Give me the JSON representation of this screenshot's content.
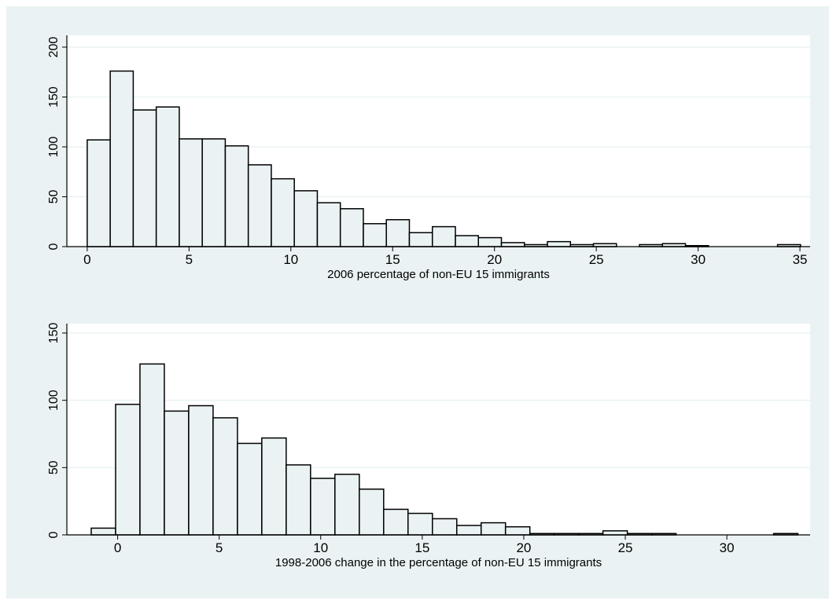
{
  "chart_data": [
    {
      "type": "histogram",
      "xlabel": "2006 percentage of non-EU 15 immigrants",
      "bins": [
        0,
        1.13,
        2.26,
        3.39,
        4.52,
        5.65,
        6.78,
        7.91,
        9.04,
        10.17,
        11.3,
        12.43,
        13.56,
        14.69,
        15.82,
        16.95,
        18.08,
        19.21,
        20.34,
        21.47,
        22.6,
        23.73,
        24.86,
        25.99,
        27.12,
        28.25,
        29.38,
        30.51,
        31.64,
        32.77,
        33.9,
        35.03
      ],
      "values": [
        107,
        176,
        137,
        140,
        108,
        108,
        101,
        82,
        68,
        56,
        44,
        38,
        23,
        27,
        14,
        20,
        11,
        9,
        4,
        2,
        5,
        2,
        3,
        0,
        2,
        3,
        1,
        0,
        0,
        0,
        2
      ],
      "color": "#eaf2f3",
      "xlim": [
        -1,
        35.5
      ],
      "xticks": [
        0,
        5,
        10,
        15,
        20,
        25,
        30,
        35
      ],
      "ylim": [
        0,
        200
      ],
      "yticks": [
        0,
        50,
        100,
        150,
        200
      ],
      "grid": true
    },
    {
      "type": "histogram",
      "xlabel": "1998-2006 change in the percentage of non-EU 15 immigrants",
      "bins": [
        -1.3,
        -0.1,
        1.1,
        2.3,
        3.5,
        4.7,
        5.9,
        7.1,
        8.3,
        9.5,
        10.7,
        11.9,
        13.1,
        14.3,
        15.5,
        16.7,
        17.9,
        19.1,
        20.3,
        21.5,
        22.7,
        23.9,
        25.1,
        26.3,
        27.5,
        28.7,
        29.9,
        31.1,
        32.3,
        33.5
      ],
      "values": [
        5,
        97,
        127,
        92,
        96,
        87,
        68,
        72,
        52,
        42,
        45,
        34,
        19,
        16,
        12,
        7,
        9,
        6,
        1,
        1,
        1,
        3,
        1,
        1,
        0,
        0,
        0,
        0,
        1
      ],
      "color": "#eaf2f3",
      "xlim": [
        -2.5,
        34.1
      ],
      "xticks": [
        0,
        5,
        10,
        15,
        20,
        25,
        30
      ],
      "ylim": [
        0,
        150
      ],
      "yticks": [
        0,
        50,
        100,
        150
      ],
      "grid": true
    }
  ]
}
